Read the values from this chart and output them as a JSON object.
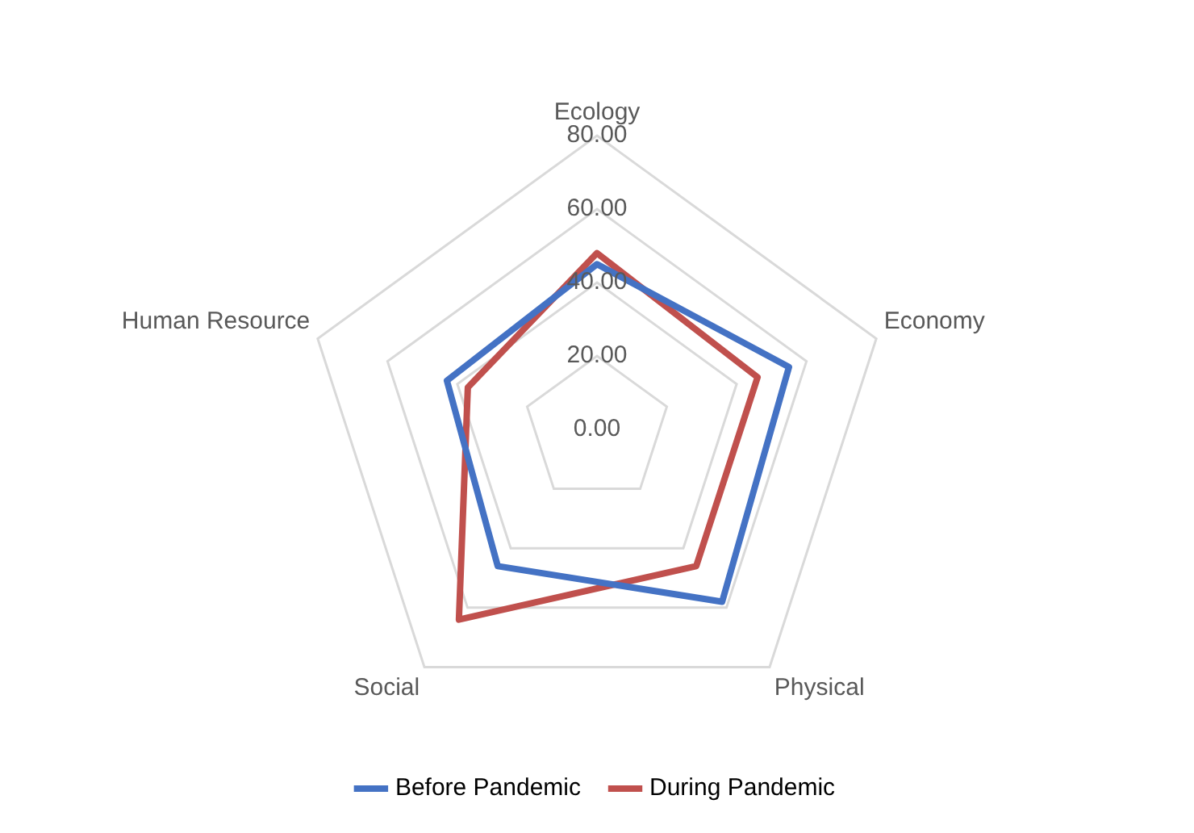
{
  "chart_data": {
    "type": "radar",
    "categories": [
      "Ecology",
      "Economy",
      "Physical",
      "Social",
      "Human Resource"
    ],
    "series": [
      {
        "name": "Before Pandemic",
        "color": "#4472c4",
        "values": [
          45,
          55,
          58,
          46,
          43
        ]
      },
      {
        "name": "During Pandemic",
        "color": "#c0504d",
        "values": [
          48,
          46,
          46,
          64,
          37
        ]
      }
    ],
    "ylim": [
      0,
      80
    ],
    "yticks": [
      {
        "value": 0,
        "label": "0.00"
      },
      {
        "value": 20,
        "label": "20.00"
      },
      {
        "value": 40,
        "label": "40.00"
      },
      {
        "value": 60,
        "label": "60.00"
      },
      {
        "value": 80,
        "label": "80.00"
      }
    ],
    "grid": true,
    "legend": "bottom",
    "marker": "none"
  }
}
